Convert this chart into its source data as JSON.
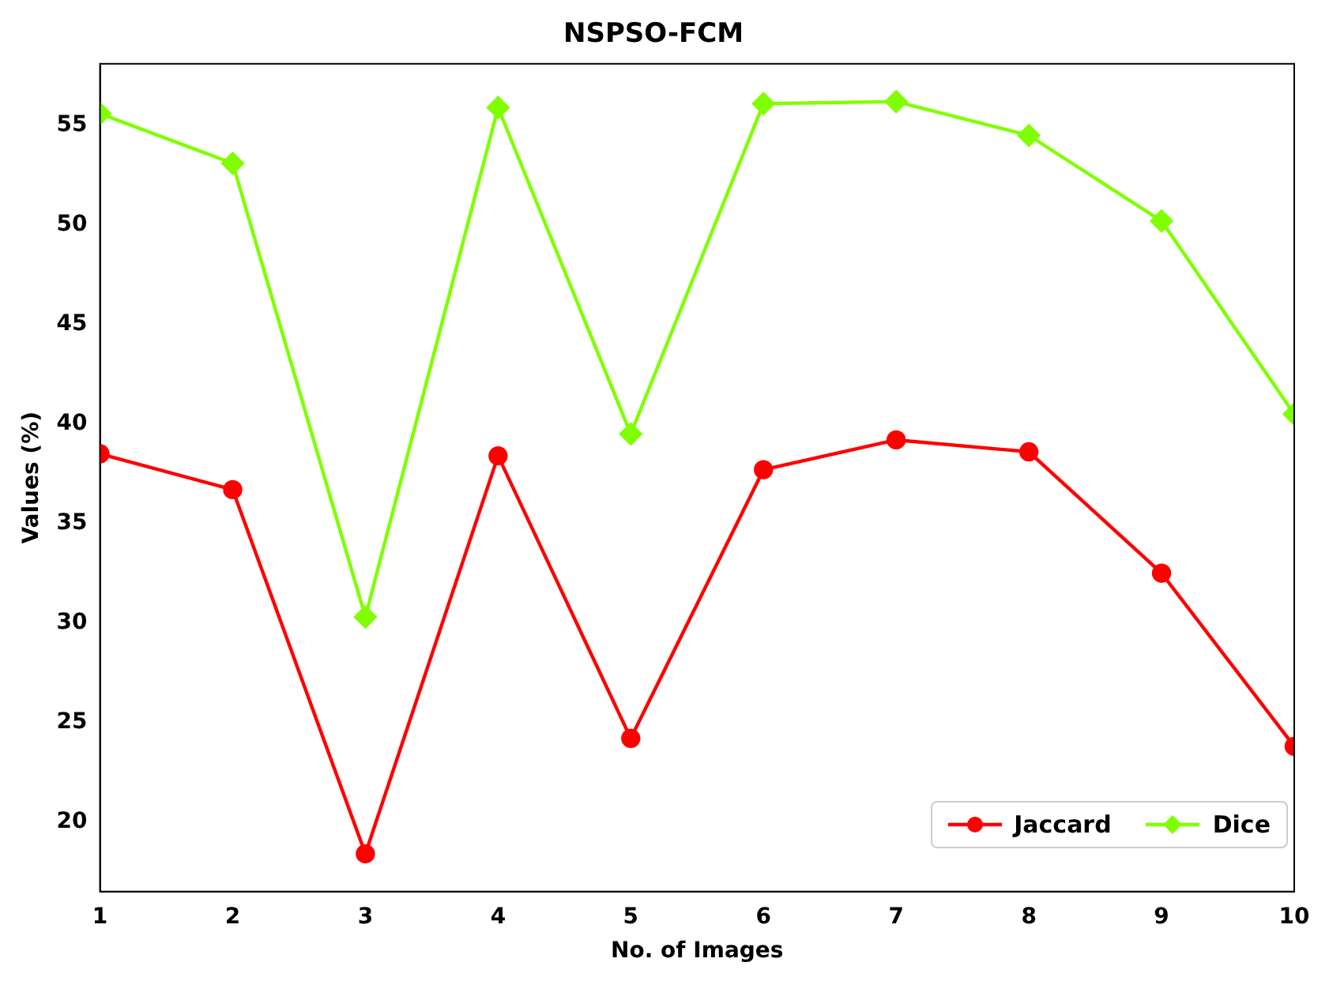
{
  "chart_data": {
    "type": "line",
    "title": "NSPSO-FCM",
    "xlabel": "No. of Images",
    "ylabel": "Values (%)",
    "x": [
      1,
      2,
      3,
      4,
      5,
      6,
      7,
      8,
      9,
      10
    ],
    "series": [
      {
        "name": "Jaccard",
        "color": "#ff0000",
        "marker": "circle",
        "values": [
          38.5,
          36.7,
          18.4,
          38.4,
          24.2,
          37.7,
          39.2,
          38.6,
          32.5,
          23.8
        ]
      },
      {
        "name": "Dice",
        "color": "#7fff00",
        "marker": "diamond",
        "values": [
          55.6,
          53.1,
          30.3,
          55.9,
          39.5,
          56.1,
          56.2,
          54.5,
          50.2,
          40.5
        ]
      }
    ],
    "xlim": [
      1,
      10
    ],
    "xticks": [
      1,
      2,
      3,
      4,
      5,
      6,
      7,
      8,
      9,
      10
    ],
    "ylim": [
      16.5,
      58.1
    ],
    "yticks": [
      20,
      25,
      30,
      35,
      40,
      45,
      50,
      55
    ],
    "grid": false,
    "legend": "bottom right",
    "line_style": "solid"
  }
}
